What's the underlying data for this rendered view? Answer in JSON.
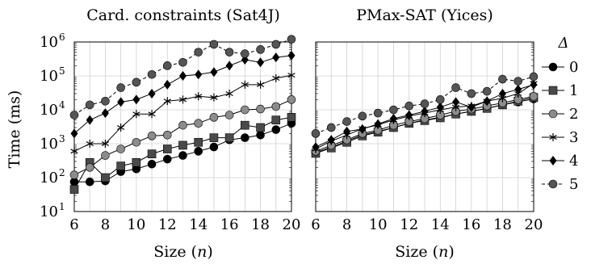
{
  "chart_data": [
    {
      "type": "line",
      "title": "Card. constraints (Sat4J)",
      "xlabel": "Size (n)",
      "ylabel": "Time (ms)",
      "yscale": "log",
      "xlim": [
        6,
        20
      ],
      "ylim": [
        10,
        1000000
      ],
      "grid": true,
      "x": [
        6,
        7,
        8,
        9,
        10,
        11,
        12,
        13,
        14,
        15,
        16,
        17,
        18,
        19,
        20
      ],
      "x_ticks": [
        "6",
        "8",
        "10",
        "12",
        "14",
        "16",
        "18",
        "20"
      ],
      "series": [
        {
          "name": "0",
          "values": [
            75,
            75,
            80,
            150,
            180,
            250,
            350,
            450,
            600,
            800,
            1300,
            1500,
            1800,
            2600,
            4000
          ]
        },
        {
          "name": "1",
          "values": [
            45,
            280,
            100,
            220,
            280,
            500,
            700,
            900,
            1100,
            1500,
            1500,
            3500,
            3000,
            5000,
            6000
          ]
        },
        {
          "name": "2",
          "values": [
            120,
            200,
            450,
            700,
            1100,
            1700,
            1800,
            3500,
            4000,
            6000,
            7000,
            10000,
            10500,
            12500,
            20000
          ]
        },
        {
          "name": "3",
          "values": [
            600,
            1000,
            1000,
            3000,
            7500,
            7500,
            18000,
            20000,
            25000,
            23000,
            30000,
            55000,
            55000,
            85000,
            105000
          ]
        },
        {
          "name": "4",
          "values": [
            2000,
            5000,
            8000,
            17000,
            20000,
            30000,
            55000,
            100000,
            110000,
            130000,
            200000,
            300000,
            250000,
            350000,
            400000
          ]
        },
        {
          "name": "5",
          "values": [
            7000,
            14000,
            18000,
            45000,
            65000,
            110000,
            200000,
            250000,
            500000,
            850000,
            500000,
            450000,
            600000,
            850000,
            1200000
          ]
        }
      ]
    },
    {
      "type": "line",
      "title": "PMax-SAT (Yices)",
      "xlabel": "Size (n)",
      "ylabel": "",
      "yscale": "log",
      "xlim": [
        6,
        20
      ],
      "ylim": [
        10,
        1000000
      ],
      "grid": true,
      "x": [
        6,
        7,
        8,
        9,
        10,
        11,
        12,
        13,
        14,
        15,
        16,
        17,
        18,
        19,
        20
      ],
      "x_ticks": [
        "6",
        "8",
        "10",
        "12",
        "14",
        "16",
        "18",
        "20"
      ],
      "series": [
        {
          "name": "0",
          "values": [
            550,
            800,
            1200,
            1800,
            2300,
            3000,
            4000,
            5000,
            6000,
            7500,
            9000,
            11000,
            14000,
            17000,
            21000
          ]
        },
        {
          "name": "1",
          "values": [
            520,
            750,
            1100,
            1700,
            2200,
            3000,
            4000,
            4800,
            5800,
            7500,
            9000,
            11000,
            14000,
            18000,
            23000
          ]
        },
        {
          "name": "2",
          "values": [
            600,
            900,
            1300,
            2000,
            2500,
            3500,
            4500,
            5500,
            7000,
            9000,
            10500,
            13000,
            16000,
            20000,
            25000
          ]
        },
        {
          "name": "3",
          "values": [
            700,
            1200,
            1800,
            2800,
            3600,
            5000,
            6500,
            8000,
            10000,
            12000,
            13000,
            18000,
            22000,
            30000,
            60000
          ]
        },
        {
          "name": "4",
          "values": [
            800,
            1300,
            2300,
            2700,
            3800,
            5500,
            7000,
            9000,
            12000,
            17000,
            12000,
            18000,
            30000,
            40000,
            55000
          ]
        },
        {
          "name": "5",
          "values": [
            2000,
            3000,
            4500,
            6500,
            8000,
            10000,
            13000,
            15000,
            20000,
            45000,
            30000,
            35000,
            80000,
            70000,
            95000
          ]
        }
      ]
    }
  ],
  "y_ticks": [
    {
      "base": "10",
      "exp": "1"
    },
    {
      "base": "10",
      "exp": "2"
    },
    {
      "base": "10",
      "exp": "3"
    },
    {
      "base": "10",
      "exp": "4"
    },
    {
      "base": "10",
      "exp": "5"
    },
    {
      "base": "10",
      "exp": "6"
    }
  ],
  "legend": {
    "title": "Δ",
    "placement": "right",
    "items": [
      {
        "label": "0",
        "marker": "circle",
        "color": "#000000",
        "dashed": false
      },
      {
        "label": "1",
        "marker": "square",
        "color": "#4a4a4a",
        "dashed": false
      },
      {
        "label": "2",
        "marker": "circle",
        "color": "#8c8c8c",
        "dashed": false
      },
      {
        "label": "3",
        "marker": "star",
        "color": "#000000",
        "dashed": false
      },
      {
        "label": "4",
        "marker": "diamond",
        "color": "#000000",
        "dashed": false
      },
      {
        "label": "5",
        "marker": "circle",
        "color": "#555555",
        "dashed": true
      }
    ]
  }
}
